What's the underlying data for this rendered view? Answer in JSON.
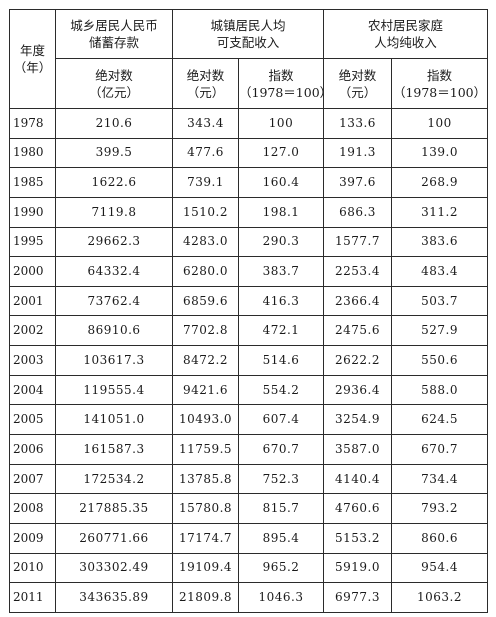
{
  "header": {
    "year_col": [
      "年度",
      "（年）"
    ],
    "groups": [
      {
        "lines": [
          "城乡居民人民币",
          "储蓄存款"
        ]
      },
      {
        "lines": [
          "城镇居民人均",
          "可支配收入"
        ]
      },
      {
        "lines": [
          "农村居民家庭",
          "人均纯收入"
        ]
      }
    ],
    "subheaders": [
      {
        "lines": [
          "绝对数",
          "（亿元）"
        ]
      },
      {
        "lines": [
          "绝对数",
          "（元）"
        ]
      },
      {
        "lines": [
          "指数",
          "（1978＝100）"
        ]
      },
      {
        "lines": [
          "绝对数",
          "（元）"
        ]
      },
      {
        "lines": [
          "指数",
          "（1978＝100）"
        ]
      }
    ]
  },
  "rows": [
    [
      "1978",
      "210.6",
      "343.4",
      "100",
      "133.6",
      "100"
    ],
    [
      "1980",
      "399.5",
      "477.6",
      "127.0",
      "191.3",
      "139.0"
    ],
    [
      "1985",
      "1622.6",
      "739.1",
      "160.4",
      "397.6",
      "268.9"
    ],
    [
      "1990",
      "7119.8",
      "1510.2",
      "198.1",
      "686.3",
      "311.2"
    ],
    [
      "1995",
      "29662.3",
      "4283.0",
      "290.3",
      "1577.7",
      "383.6"
    ],
    [
      "2000",
      "64332.4",
      "6280.0",
      "383.7",
      "2253.4",
      "483.4"
    ],
    [
      "2001",
      "73762.4",
      "6859.6",
      "416.3",
      "2366.4",
      "503.7"
    ],
    [
      "2002",
      "86910.6",
      "7702.8",
      "472.1",
      "2475.6",
      "527.9"
    ],
    [
      "2003",
      "103617.3",
      "8472.2",
      "514.6",
      "2622.2",
      "550.6"
    ],
    [
      "2004",
      "119555.4",
      "9421.6",
      "554.2",
      "2936.4",
      "588.0"
    ],
    [
      "2005",
      "141051.0",
      "10493.0",
      "607.4",
      "3254.9",
      "624.5"
    ],
    [
      "2006",
      "161587.3",
      "11759.5",
      "670.7",
      "3587.0",
      "670.7"
    ],
    [
      "2007",
      "172534.2",
      "13785.8",
      "752.3",
      "4140.4",
      "734.4"
    ],
    [
      "2008",
      "217885.35",
      "15780.8",
      "815.7",
      "4760.6",
      "793.2"
    ],
    [
      "2009",
      "260771.66",
      "17174.7",
      "895.4",
      "5153.2",
      "860.6"
    ],
    [
      "2010",
      "303302.49",
      "19109.4",
      "965.2",
      "5919.0",
      "954.4"
    ],
    [
      "2011",
      "343635.89",
      "21809.8",
      "1046.3",
      "6977.3",
      "1063.2"
    ]
  ]
}
